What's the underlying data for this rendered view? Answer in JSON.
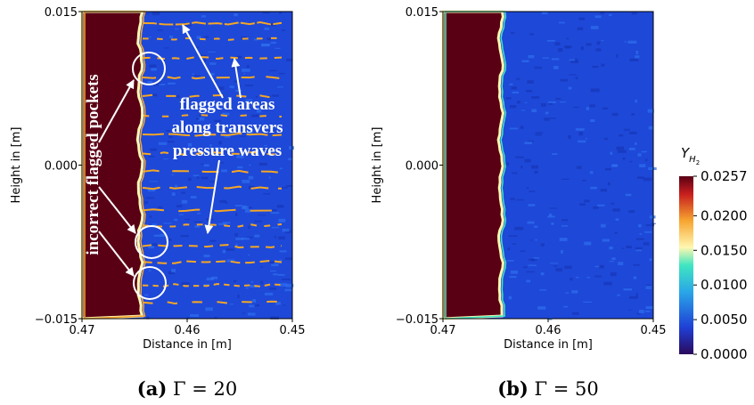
{
  "chart_data": [
    {
      "type": "heatmap",
      "caption_label": "(a)",
      "caption_text": "Γ = 20",
      "x_label": "Distance in [m]",
      "y_label": "Height in [m]",
      "xlim": [
        0.47,
        0.45
      ],
      "xticks": [
        0.47,
        0.46,
        0.45
      ],
      "ylim": [
        -0.015,
        0.015
      ],
      "yticks": [
        {
          "value": -0.015,
          "label": "−0.015"
        },
        {
          "value": 0,
          "label": "0.000"
        },
        0.015
      ],
      "annotations": [
        "incorrect flagged pockets",
        "flagged areas",
        "along transvers",
        "pressure waves"
      ]
    },
    {
      "type": "heatmap",
      "caption_label": "(b)",
      "caption_text": "Γ = 50",
      "x_label": "Distance in [m]",
      "y_label": "Height in [m]",
      "xlim": [
        0.47,
        0.45
      ],
      "xticks": [
        0.47,
        0.46,
        0.45
      ],
      "ylim": [
        -0.015,
        0.015
      ],
      "yticks": [
        {
          "value": -0.015,
          "label": "−0.015"
        },
        {
          "value": 0,
          "label": "0.000"
        },
        0.015
      ],
      "colorbar": {
        "label": "Y",
        "label_sub": "H",
        "label_subsub": "2",
        "clim": [
          0,
          0.0257
        ],
        "ticks": [
          {
            "value": 0,
            "label": "0.0000"
          },
          {
            "value": 0.005,
            "label": "0.0050"
          },
          {
            "value": 0.01,
            "label": "0.0100"
          },
          {
            "value": 0.015,
            "label": "0.0150"
          },
          {
            "value": 0.02,
            "label": "0.0200"
          },
          {
            "value": 0.0257,
            "label": "0.0257"
          }
        ]
      }
    }
  ]
}
